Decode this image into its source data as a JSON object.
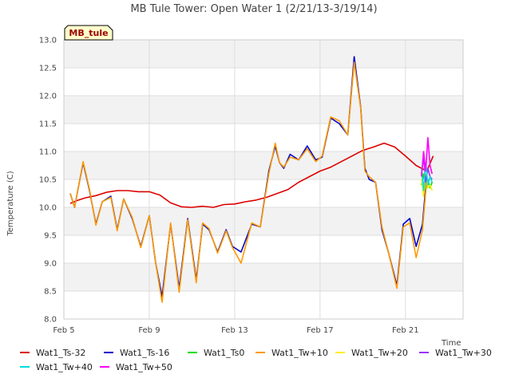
{
  "chart_data": {
    "type": "line",
    "title": "MB Tule Tower: Open Water 1 (2/21/13-3/19/14)",
    "xlabel": "Time",
    "ylabel": "Temperature (C)",
    "site_label": "MB_tule",
    "ylim": [
      8.0,
      13.0
    ],
    "y_ticks": [
      "8.0",
      "8.5",
      "9.0",
      "9.5",
      "10.0",
      "10.5",
      "11.0",
      "11.5",
      "12.0",
      "12.5",
      "13.0"
    ],
    "xlim": [
      5,
      23.7
    ],
    "x_ticks": [
      {
        "value": 5,
        "label": "Feb 5"
      },
      {
        "value": 9,
        "label": "Feb 9"
      },
      {
        "value": 13,
        "label": "Feb 13"
      },
      {
        "value": 17,
        "label": "Feb 17"
      },
      {
        "value": 21,
        "label": "Feb 21"
      }
    ],
    "grid": true,
    "legend_position": "bottom",
    "series": [
      {
        "name": "Wat1_Ts-32",
        "color": "#dd0000",
        "x": [
          5.3,
          5.6,
          6.0,
          6.5,
          7.0,
          7.5,
          8.0,
          8.5,
          9.0,
          9.5,
          10.0,
          10.5,
          11.0,
          11.5,
          12.0,
          12.5,
          13.0,
          13.5,
          14.0,
          14.5,
          15.0,
          15.5,
          16.0,
          16.5,
          17.0,
          17.5,
          18.0,
          18.5,
          19.0,
          19.5,
          20.0,
          20.5,
          21.0,
          21.5,
          22.0,
          22.3
        ],
        "y": [
          10.07,
          10.12,
          10.17,
          10.21,
          10.27,
          10.3,
          10.3,
          10.28,
          10.28,
          10.22,
          10.08,
          10.01,
          10.0,
          10.02,
          10.0,
          10.05,
          10.06,
          10.1,
          10.13,
          10.18,
          10.25,
          10.32,
          10.45,
          10.55,
          10.65,
          10.72,
          10.82,
          10.92,
          11.02,
          11.08,
          11.15,
          11.08,
          10.92,
          10.75,
          10.65,
          10.92
        ]
      },
      {
        "name": "Wat1_Ts-16",
        "color": "#0000cc",
        "x": [
          5.3,
          5.5,
          5.7,
          5.9,
          6.2,
          6.5,
          6.8,
          7.2,
          7.5,
          7.8,
          8.2,
          8.6,
          9.0,
          9.3,
          9.6,
          10.0,
          10.4,
          10.8,
          11.2,
          11.5,
          11.8,
          12.2,
          12.6,
          12.9,
          13.3,
          13.8,
          14.2,
          14.6,
          14.9,
          15.1,
          15.3,
          15.6,
          16.0,
          16.4,
          16.8,
          17.1,
          17.5,
          17.9,
          18.3,
          18.6,
          18.9,
          19.1,
          19.3,
          19.6,
          19.9,
          20.2,
          20.6,
          20.9,
          21.2,
          21.5,
          21.8,
          22.0
        ],
        "y": [
          10.25,
          10.0,
          10.4,
          10.8,
          10.3,
          9.7,
          10.1,
          10.2,
          9.6,
          10.15,
          9.8,
          9.3,
          9.85,
          9.0,
          8.4,
          9.7,
          8.55,
          9.8,
          8.7,
          9.7,
          9.6,
          9.2,
          9.6,
          9.3,
          9.2,
          9.7,
          9.65,
          10.65,
          11.1,
          10.8,
          10.7,
          10.95,
          10.85,
          11.1,
          10.85,
          10.9,
          11.6,
          11.5,
          11.3,
          12.7,
          11.8,
          10.7,
          10.5,
          10.45,
          9.6,
          9.2,
          8.6,
          9.7,
          9.8,
          9.3,
          9.7,
          10.6
        ]
      },
      {
        "name": "Wat1_Ts0",
        "color": "#00dd00",
        "x": [
          21.75,
          21.85,
          21.95,
          22.05,
          22.15,
          22.25
        ],
        "y": [
          10.4,
          10.6,
          10.3,
          10.5,
          10.35,
          10.45
        ]
      },
      {
        "name": "Wat1_Tw+10",
        "color": "#ff9900",
        "x": [
          5.3,
          5.5,
          5.7,
          5.9,
          6.2,
          6.5,
          6.8,
          7.2,
          7.5,
          7.8,
          8.2,
          8.6,
          9.0,
          9.3,
          9.6,
          10.0,
          10.4,
          10.8,
          11.2,
          11.5,
          11.8,
          12.2,
          12.6,
          12.9,
          13.3,
          13.8,
          14.2,
          14.6,
          14.9,
          15.1,
          15.3,
          15.6,
          16.0,
          16.4,
          16.8,
          17.1,
          17.5,
          17.9,
          18.3,
          18.6,
          18.9,
          19.1,
          19.3,
          19.6,
          19.9,
          20.2,
          20.6,
          20.9,
          21.2,
          21.5,
          21.8,
          22.0
        ],
        "y": [
          10.25,
          10.0,
          10.4,
          10.82,
          10.32,
          9.68,
          10.1,
          10.18,
          9.58,
          10.15,
          9.82,
          9.28,
          9.85,
          9.0,
          8.3,
          9.72,
          8.48,
          9.78,
          8.65,
          9.72,
          9.62,
          9.18,
          9.58,
          9.28,
          9.0,
          9.72,
          9.65,
          10.6,
          11.15,
          10.8,
          10.72,
          10.9,
          10.85,
          11.05,
          10.82,
          10.92,
          11.62,
          11.55,
          11.3,
          12.6,
          11.78,
          10.65,
          10.55,
          10.45,
          9.65,
          9.2,
          8.55,
          9.65,
          9.72,
          9.1,
          9.6,
          10.5
        ]
      },
      {
        "name": "Wat1_Tw+20",
        "color": "#ffee00",
        "x": [
          21.75,
          21.85,
          21.95,
          22.05,
          22.15,
          22.25
        ],
        "y": [
          10.5,
          10.2,
          10.6,
          10.35,
          10.4,
          10.3
        ]
      },
      {
        "name": "Wat1_Tw+30",
        "color": "#9933ff",
        "x": [
          21.75,
          21.85,
          21.95,
          22.05,
          22.15,
          22.25
        ],
        "y": [
          10.6,
          10.9,
          10.45,
          10.7,
          10.55,
          10.5
        ]
      },
      {
        "name": "Wat1_Tw+40",
        "color": "#00dddd",
        "x": [
          21.75,
          21.85,
          21.95,
          22.05,
          22.15,
          22.25
        ],
        "y": [
          10.7,
          10.3,
          10.8,
          10.4,
          10.55,
          10.45
        ]
      },
      {
        "name": "Wat1_Tw+50",
        "color": "#ff00ff",
        "x": [
          21.75,
          21.85,
          21.95,
          22.05,
          22.15,
          22.25
        ],
        "y": [
          10.55,
          11.0,
          10.65,
          11.25,
          10.75,
          10.6
        ]
      }
    ]
  }
}
